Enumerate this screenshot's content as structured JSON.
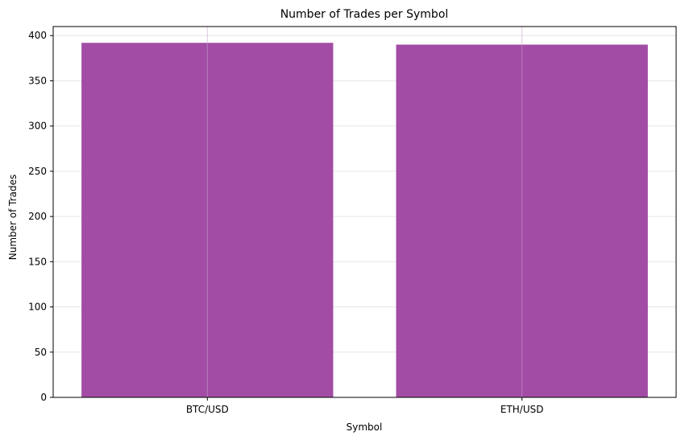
{
  "chart_data": {
    "type": "bar",
    "title": "Number of Trades per Symbol",
    "xlabel": "Symbol",
    "ylabel": "Number of Trades",
    "categories": [
      "BTC/USD",
      "ETH/USD"
    ],
    "values": [
      392,
      390
    ],
    "ylim": [
      0,
      410
    ],
    "yticks": [
      0,
      50,
      100,
      150,
      200,
      250,
      300,
      350,
      400
    ],
    "grid": true,
    "bar_color": "#a24ca5",
    "grid_color": "#e6e6e6"
  }
}
